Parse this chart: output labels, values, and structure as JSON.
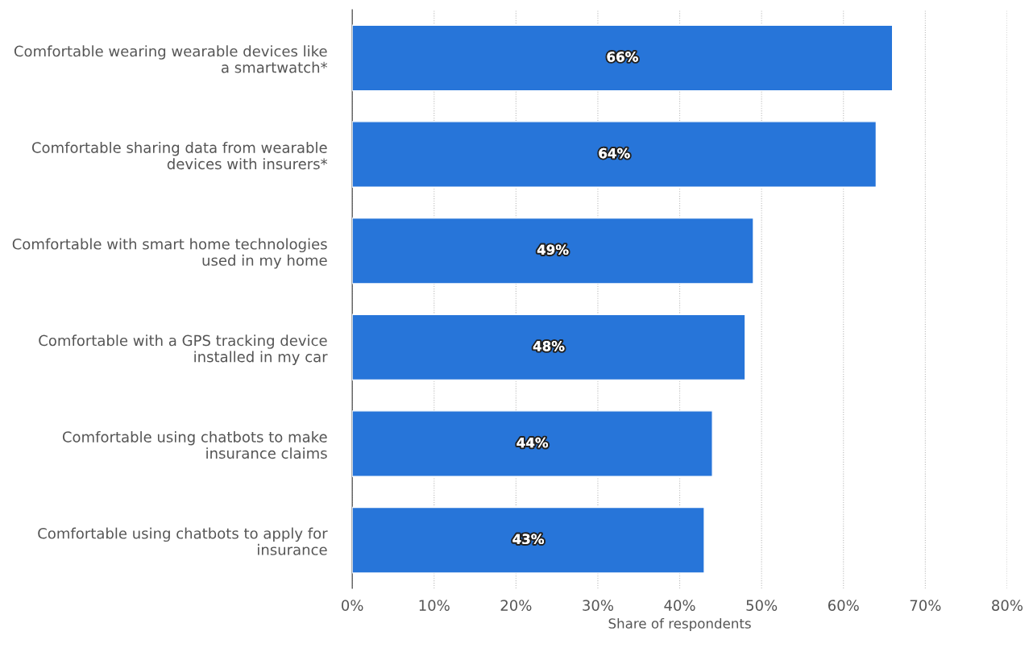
{
  "chart_data": {
    "type": "bar",
    "orientation": "horizontal",
    "categories": [
      "Comfortable wearing wearable devices like a smartwatch*",
      "Comfortable sharing data from wearable devices with insurers*",
      "Comfortable with smart home technologies used in my home",
      "Comfortable with a GPS tracking device installed in my car",
      "Comfortable using chatbots to make insurance claims",
      "Comfortable using chatbots to apply for insurance"
    ],
    "values": [
      66,
      64,
      49,
      48,
      44,
      43
    ],
    "value_labels": [
      "66%",
      "64%",
      "49%",
      "48%",
      "44%",
      "43%"
    ],
    "color": "#2775d9",
    "xlabel": "Share of respondents",
    "xlim": [
      0,
      80
    ],
    "xticks": [
      {
        "value": 0,
        "label": "0%"
      },
      {
        "value": 10,
        "label": "10%"
      },
      {
        "value": 20,
        "label": "20%"
      },
      {
        "value": 30,
        "label": "30%"
      },
      {
        "value": 40,
        "label": "40%"
      },
      {
        "value": 50,
        "label": "50%"
      },
      {
        "value": 60,
        "label": "60%"
      },
      {
        "value": 70,
        "label": "70%"
      },
      {
        "value": 80,
        "label": "80%"
      }
    ],
    "grid": "x"
  }
}
